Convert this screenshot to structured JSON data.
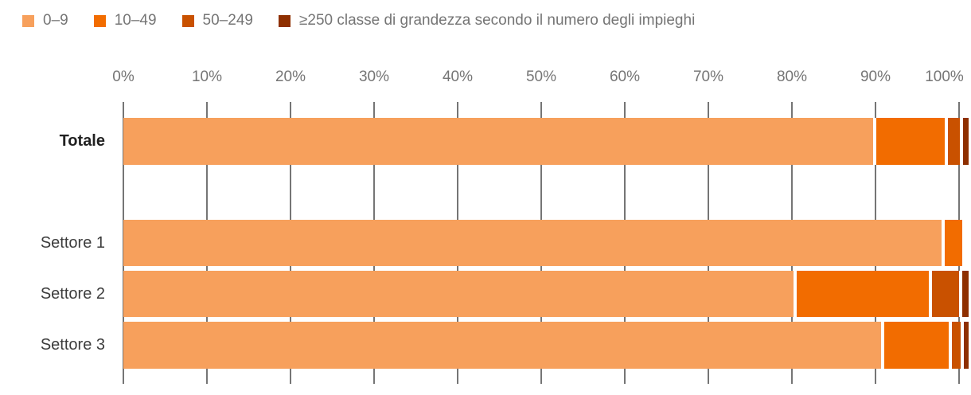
{
  "legend": {
    "items": [
      {
        "label": "0–9",
        "color": "#F7A05C"
      },
      {
        "label": "10–49",
        "color": "#F26C00"
      },
      {
        "label": "50–249",
        "color": "#C95100"
      },
      {
        "label": "≥250 classe di grandezza secondo il numero degli impieghi",
        "color": "#8E2F00"
      }
    ]
  },
  "chart_data": {
    "type": "bar",
    "stacked": true,
    "orientation": "horizontal",
    "title": "",
    "categories": [
      "Totale",
      "Settore 1",
      "Settore 2",
      "Settore 3"
    ],
    "series": [
      {
        "name": "0–9",
        "color": "#F7A05C",
        "values": [
          89.7,
          97.9,
          80.2,
          90.7
        ]
      },
      {
        "name": "10–49",
        "color": "#F26C00",
        "values": [
          8.2,
          2.1,
          15.8,
          7.7
        ]
      },
      {
        "name": "50–249",
        "color": "#C95100",
        "values": [
          1.4,
          0,
          3.2,
          1.0
        ]
      },
      {
        "name": "≥250",
        "color": "#8E2F00",
        "values": [
          0.7,
          0,
          0.8,
          0.6
        ]
      }
    ],
    "xlim": [
      0,
      100
    ],
    "x_ticks": [
      "0%",
      "10%",
      "20%",
      "30%",
      "40%",
      "50%",
      "60%",
      "70%",
      "80%",
      "90%",
      "100%"
    ],
    "grid": true,
    "legend_position": "top",
    "gridline_color": "#757575",
    "axis_text_color": "#757575"
  }
}
